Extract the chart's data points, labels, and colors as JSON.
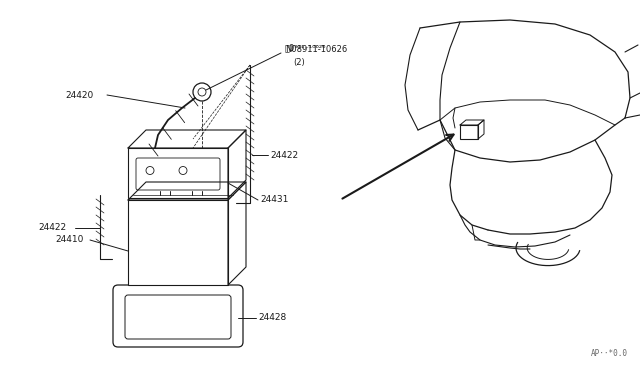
{
  "bg_color": "#ffffff",
  "line_color": "#1a1a1a",
  "fig_width": 6.4,
  "fig_height": 3.72,
  "dpi": 100,
  "watermark": "AP··*0.0",
  "font_size": 6.5
}
